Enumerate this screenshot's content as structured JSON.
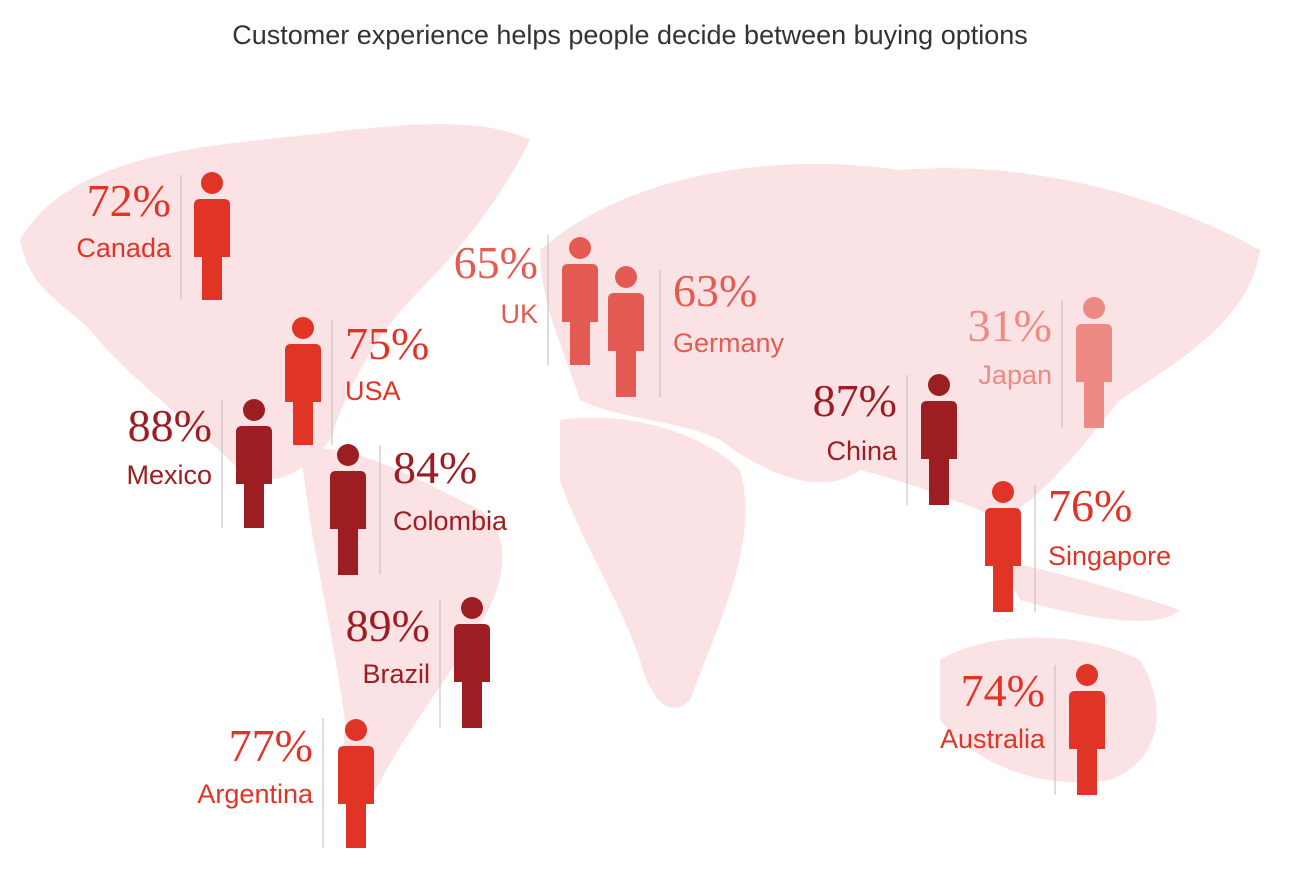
{
  "title": "Customer experience helps people decide between buying options",
  "countries": [
    {
      "name": "Canada",
      "value": 72,
      "label": "72%",
      "color": "#df3426"
    },
    {
      "name": "USA",
      "value": 75,
      "label": "75%",
      "color": "#df3426"
    },
    {
      "name": "Mexico",
      "value": 88,
      "label": "88%",
      "color": "#9c1d22"
    },
    {
      "name": "Colombia",
      "value": 84,
      "label": "84%",
      "color": "#9c1d22"
    },
    {
      "name": "Brazil",
      "value": 89,
      "label": "89%",
      "color": "#9c1d22"
    },
    {
      "name": "Argentina",
      "value": 77,
      "label": "77%",
      "color": "#df3426"
    },
    {
      "name": "UK",
      "value": 65,
      "label": "65%",
      "color": "#e35b53"
    },
    {
      "name": "Germany",
      "value": 63,
      "label": "63%",
      "color": "#e35b53"
    },
    {
      "name": "Japan",
      "value": 31,
      "label": "31%",
      "color": "#ed8a84"
    },
    {
      "name": "China",
      "value": 87,
      "label": "87%",
      "color": "#9c1d22"
    },
    {
      "name": "Singapore",
      "value": 76,
      "label": "76%",
      "color": "#df3426"
    },
    {
      "name": "Australia",
      "value": 74,
      "label": "74%",
      "color": "#df3426"
    }
  ]
}
